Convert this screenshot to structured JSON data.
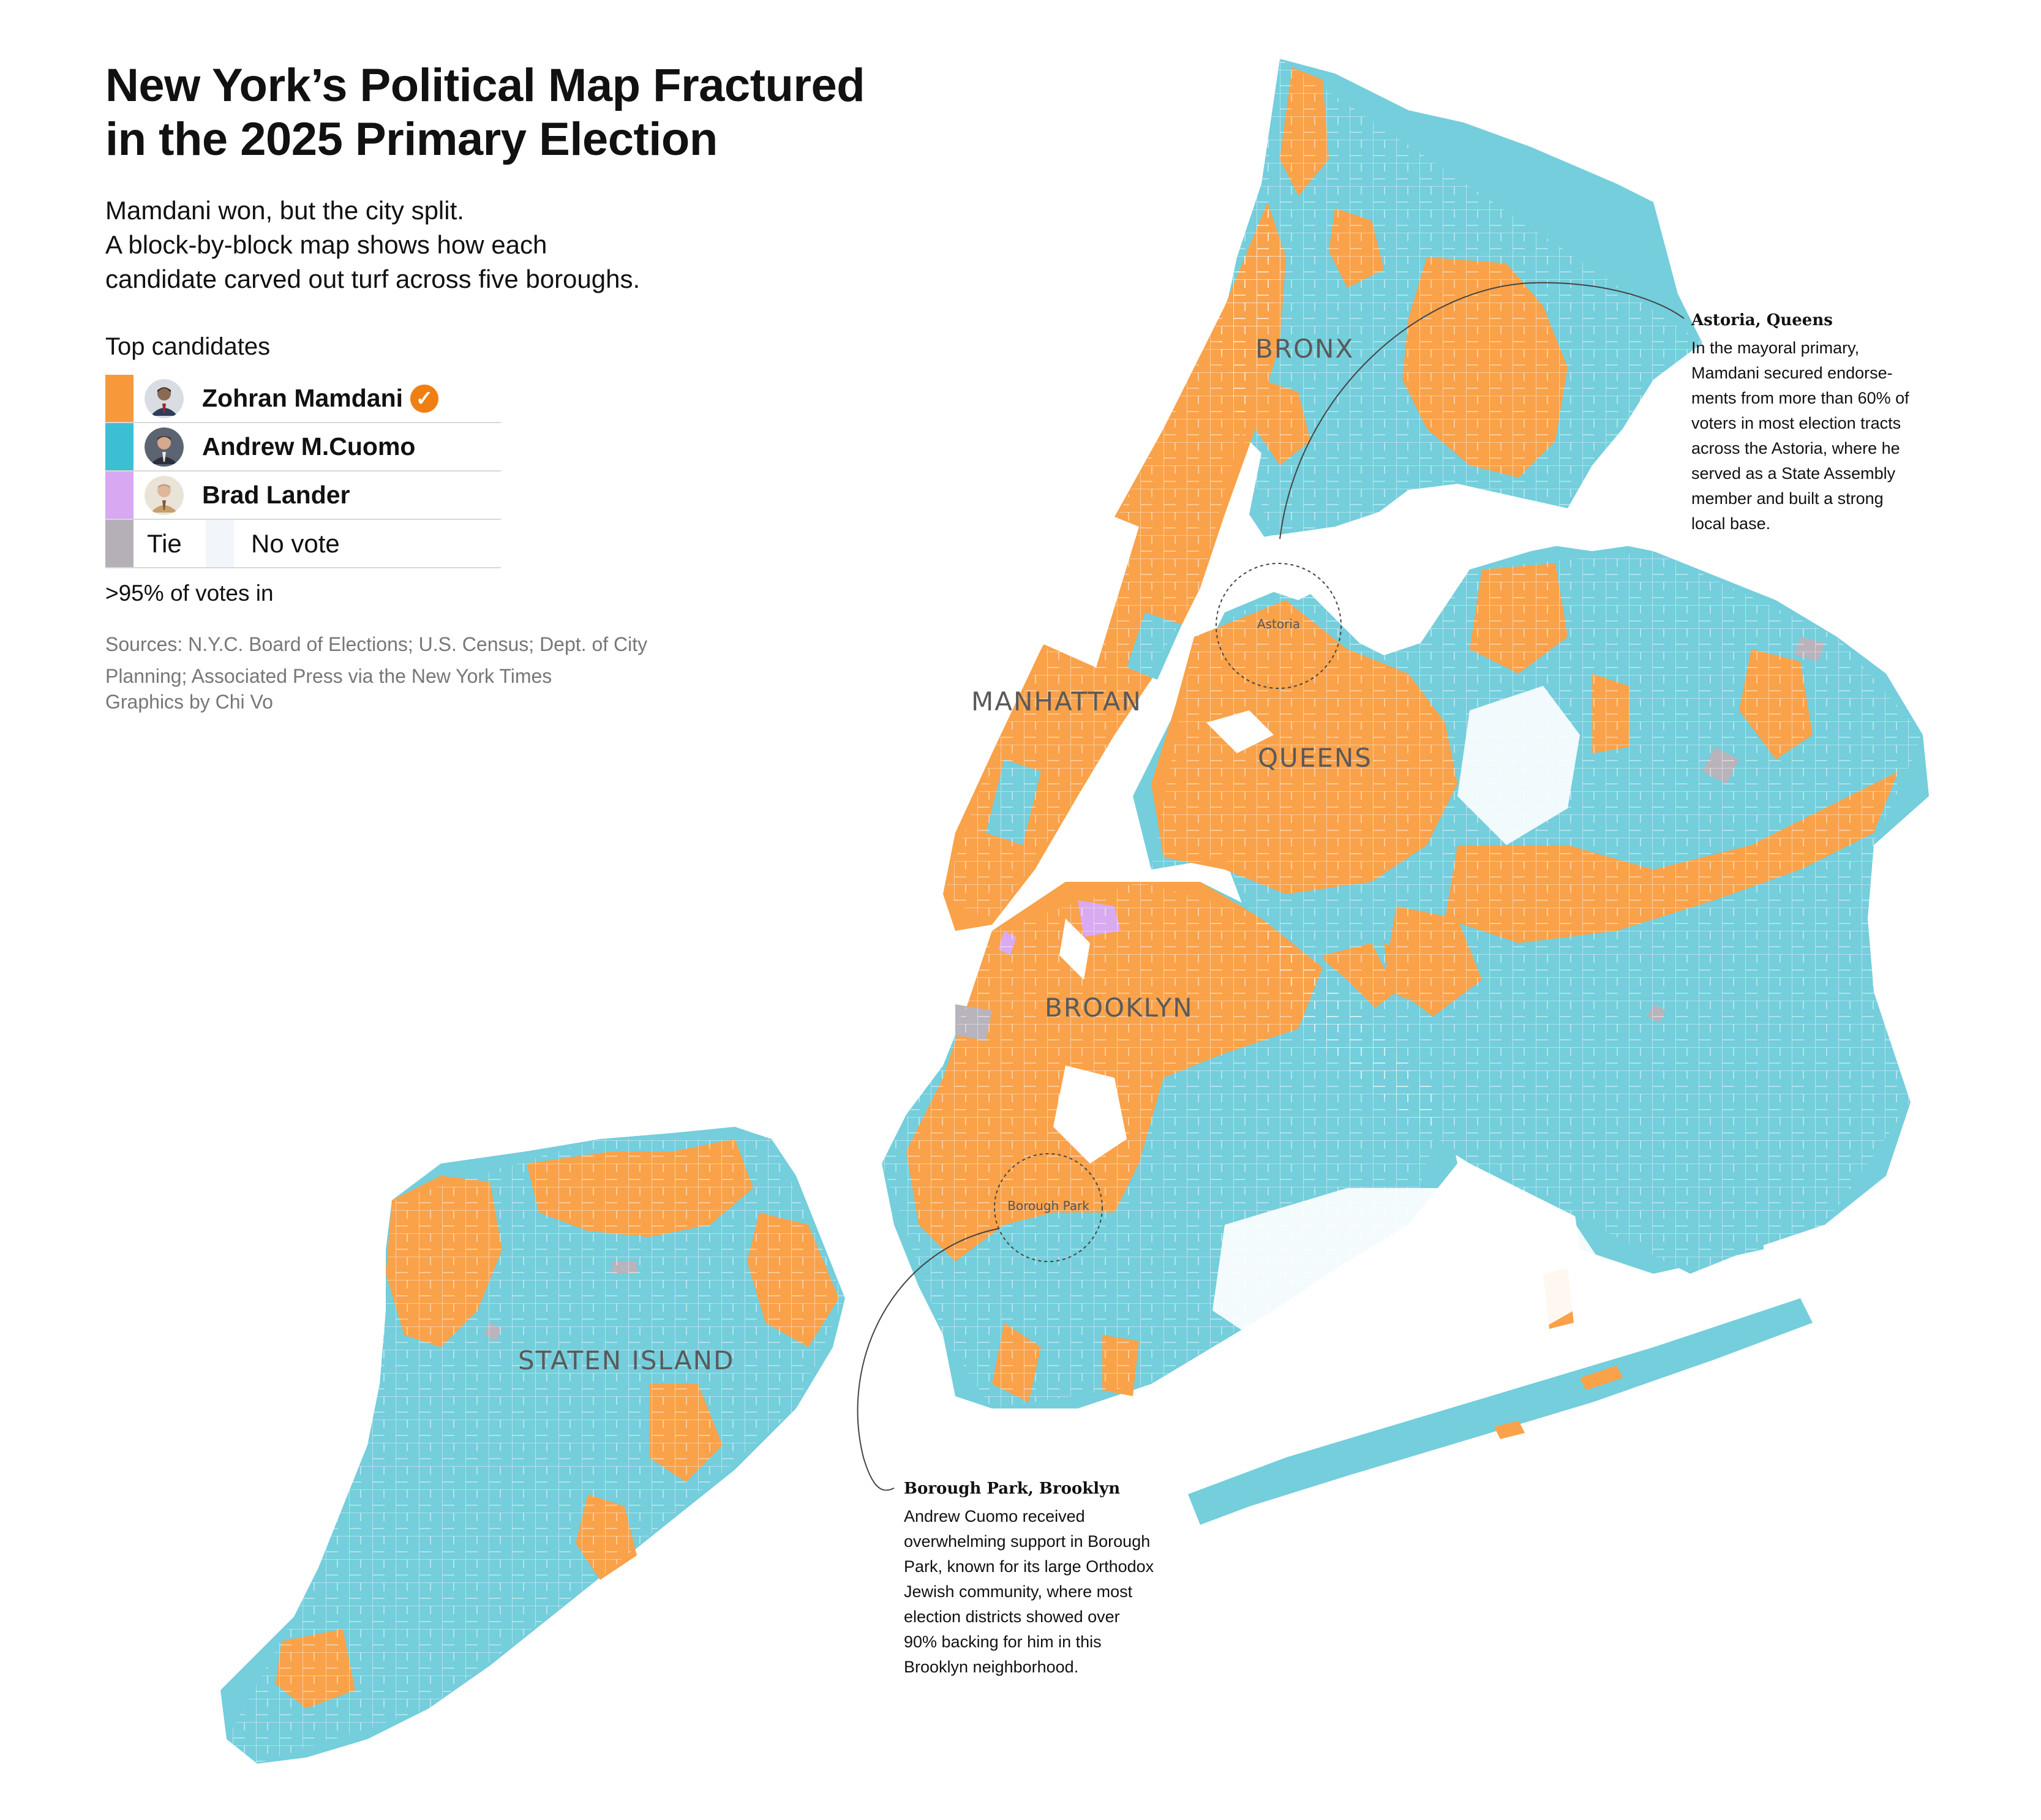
{
  "header": {
    "title_line1": "New York’s Political Map Fractured",
    "title_line2": "in the 2025 Primary Election",
    "subtitle_lines": [
      "Mamdani won, but the city split.",
      "A block-by-block map shows how each",
      "candidate carved out turf across five boroughs."
    ]
  },
  "legend": {
    "title": "Top candidates",
    "candidates": [
      {
        "name": "Zohran Mamdani",
        "color": "#f7993a",
        "winner": true
      },
      {
        "name": "Andrew M.Cuomo",
        "color": "#3bbfd4"
      },
      {
        "name": "Brad Lander",
        "color": "#d8a8f2"
      }
    ],
    "tie_label": "Tie",
    "tie_color": "#b5b0b8",
    "no_vote_label": "No vote",
    "no_vote_color": "#f2f6fb"
  },
  "votes_in": ">95% of votes in",
  "sources": "Sources: N.Y.C. Board of Elections; U.S. Census; Dept. of City Planning; Associated Press via the New York Times",
  "credit": "Graphics by Chi Vo",
  "map": {
    "boroughs": {
      "bronx": "BRONX",
      "manhattan": "MANHATTAN",
      "queens": "QUEENS",
      "brooklyn": "BROOKLYN",
      "staten_island": "STATEN ISLAND"
    },
    "callout_astoria": "Astoria",
    "callout_borough_park": "Borough Park",
    "colors": {
      "cuomo": "#74cedc",
      "mamdani": "#f9a24a",
      "lander": "#d9aaf0",
      "tie": "#b9b3bc",
      "water": "#ffffff"
    }
  },
  "annotations": {
    "astoria": {
      "heading": "Astoria, Queens",
      "lines": [
        "In the mayoral primary,",
        "Mamdani secured endorse-",
        "ments from more than 60% of",
        "voters in most election tracts",
        "across the Astoria, where he",
        "served as a State Assembly",
        "member and built a strong",
        "local base."
      ]
    },
    "borough_park": {
      "heading": "Borough Park, Brooklyn",
      "lines": [
        "Andrew Cuomo received",
        "overwhelming support in Borough",
        "Park, known for its large Orthodox",
        "Jewish community, where most",
        "election districts showed over",
        "90% backing for him in this",
        "Brooklyn neighborhood."
      ]
    }
  }
}
